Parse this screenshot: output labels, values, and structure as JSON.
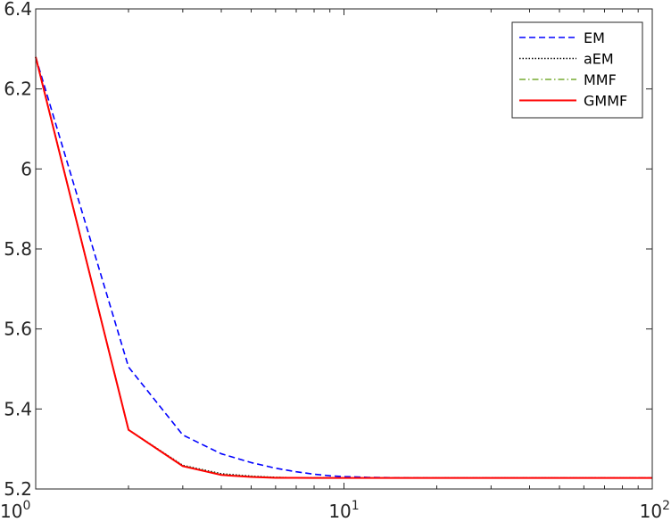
{
  "chart_data": {
    "type": "line",
    "title": "",
    "xlabel": "",
    "ylabel": "",
    "xscale": "log",
    "xlim": [
      1,
      100
    ],
    "ylim": [
      5.2,
      6.4
    ],
    "grid": false,
    "legend_position": "top-right",
    "y_ticks": [
      5.2,
      5.4,
      5.6,
      5.8,
      6,
      6.2,
      6.4
    ],
    "y_tick_labels": [
      "5.2",
      "5.4",
      "5.6",
      "5.8",
      "6",
      "6.2",
      "6.4"
    ],
    "x_ticks": [
      1,
      10,
      100
    ],
    "x_tick_labels": [
      {
        "base": "10",
        "exp": "0"
      },
      {
        "base": "10",
        "exp": "1"
      },
      {
        "base": "10",
        "exp": "2"
      }
    ],
    "series": [
      {
        "name": "EM",
        "color": "#0000ff",
        "style": "dashed",
        "x": [
          1,
          2,
          3,
          4,
          5,
          6,
          7,
          8,
          9,
          10,
          12,
          15,
          20,
          30,
          50,
          100
        ],
        "y": [
          6.28,
          5.505,
          5.335,
          5.288,
          5.266,
          5.252,
          5.243,
          5.237,
          5.233,
          5.231,
          5.229,
          5.228,
          5.2275,
          5.2275,
          5.2275,
          5.2275
        ]
      },
      {
        "name": "aEM",
        "color": "#000000",
        "style": "dotted",
        "x": [
          1,
          2,
          3,
          4,
          5,
          6,
          7,
          8,
          10,
          15,
          20,
          50,
          100
        ],
        "y": [
          6.28,
          5.348,
          5.259,
          5.238,
          5.232,
          5.229,
          5.228,
          5.2278,
          5.2275,
          5.2275,
          5.2275,
          5.2275,
          5.2275
        ]
      },
      {
        "name": "MMF",
        "color": "#77ac30",
        "style": "dashdot",
        "x": [
          1,
          2,
          3,
          4,
          5,
          6,
          7,
          8,
          10,
          15,
          20,
          50,
          100
        ],
        "y": [
          6.28,
          5.348,
          5.258,
          5.236,
          5.231,
          5.229,
          5.228,
          5.2277,
          5.2275,
          5.2275,
          5.2275,
          5.2275,
          5.2275
        ]
      },
      {
        "name": "GMMF",
        "color": "#ff0000",
        "style": "solid",
        "x": [
          1,
          2,
          3,
          4,
          5,
          6,
          7,
          8,
          10,
          15,
          20,
          50,
          100
        ],
        "y": [
          6.28,
          5.348,
          5.257,
          5.235,
          5.23,
          5.228,
          5.2278,
          5.2276,
          5.2275,
          5.2275,
          5.2275,
          5.2275,
          5.2275
        ]
      }
    ]
  }
}
